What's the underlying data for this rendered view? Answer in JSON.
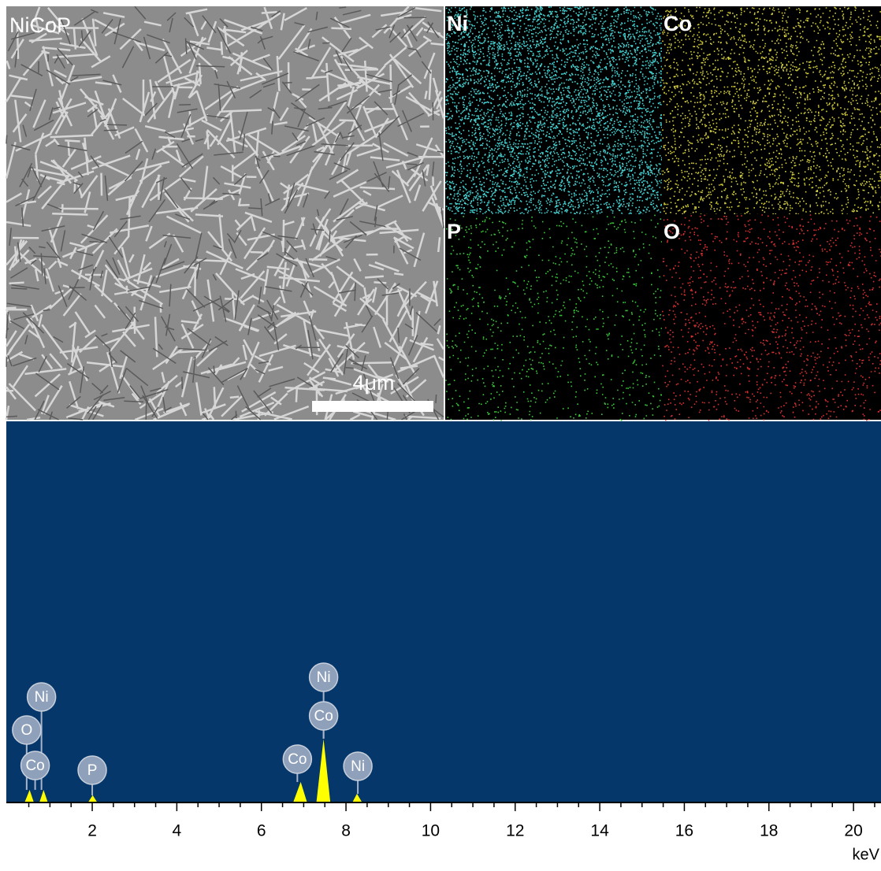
{
  "sem": {
    "label": "NiCoP",
    "scale_bar": "4μm"
  },
  "maps": [
    {
      "label": "Ni",
      "color": "#46d2d2"
    },
    {
      "label": "Co",
      "color": "#d2cc3c"
    },
    {
      "label": "P",
      "color": "#3cc83c"
    },
    {
      "label": "O",
      "color": "#d83030"
    }
  ],
  "chart_data": {
    "type": "area",
    "xlabel": "keV",
    "color": "#ffff00",
    "background": "#06376b",
    "x": [
      0,
      0.4,
      0.52,
      0.62,
      0.75,
      0.85,
      0.95,
      1.9,
      2.01,
      2.12,
      6.75,
      6.93,
      7.08,
      7.3,
      7.47,
      7.63,
      8.15,
      8.26,
      8.38,
      20.65
    ],
    "values": [
      0,
      0,
      3.3,
      0,
      0,
      3.3,
      0,
      0,
      1.9,
      0,
      0,
      5.4,
      0,
      0,
      16.7,
      0,
      0,
      2.3,
      0,
      0
    ],
    "xlim": [
      0,
      20.65
    ],
    "ylim": [
      0,
      100
    ],
    "xticks": [
      2,
      4,
      6,
      8,
      10,
      12,
      14,
      16,
      18,
      20
    ],
    "xminorticks": [
      0.5,
      1,
      1.5,
      2.5,
      3,
      3.5,
      4.5,
      5,
      5.5,
      6.5,
      7,
      7.5,
      8.5,
      9,
      9.5,
      10.5,
      11,
      11.5,
      12.5,
      13,
      13.5,
      14.5,
      15,
      15.5,
      16.5,
      17,
      17.5,
      18.5,
      19,
      19.5,
      20.5
    ],
    "annotations": [
      {
        "text": "Ni",
        "x": 0.8
      },
      {
        "text": "O",
        "x": 0.45
      },
      {
        "text": "Co",
        "x": 0.65
      },
      {
        "text": "P",
        "x": 2.0
      },
      {
        "text": "Co",
        "x": 6.85
      },
      {
        "text": "Ni",
        "x": 7.47
      },
      {
        "text": "Co",
        "x": 7.47
      },
      {
        "text": "Ni",
        "x": 8.28
      }
    ]
  }
}
